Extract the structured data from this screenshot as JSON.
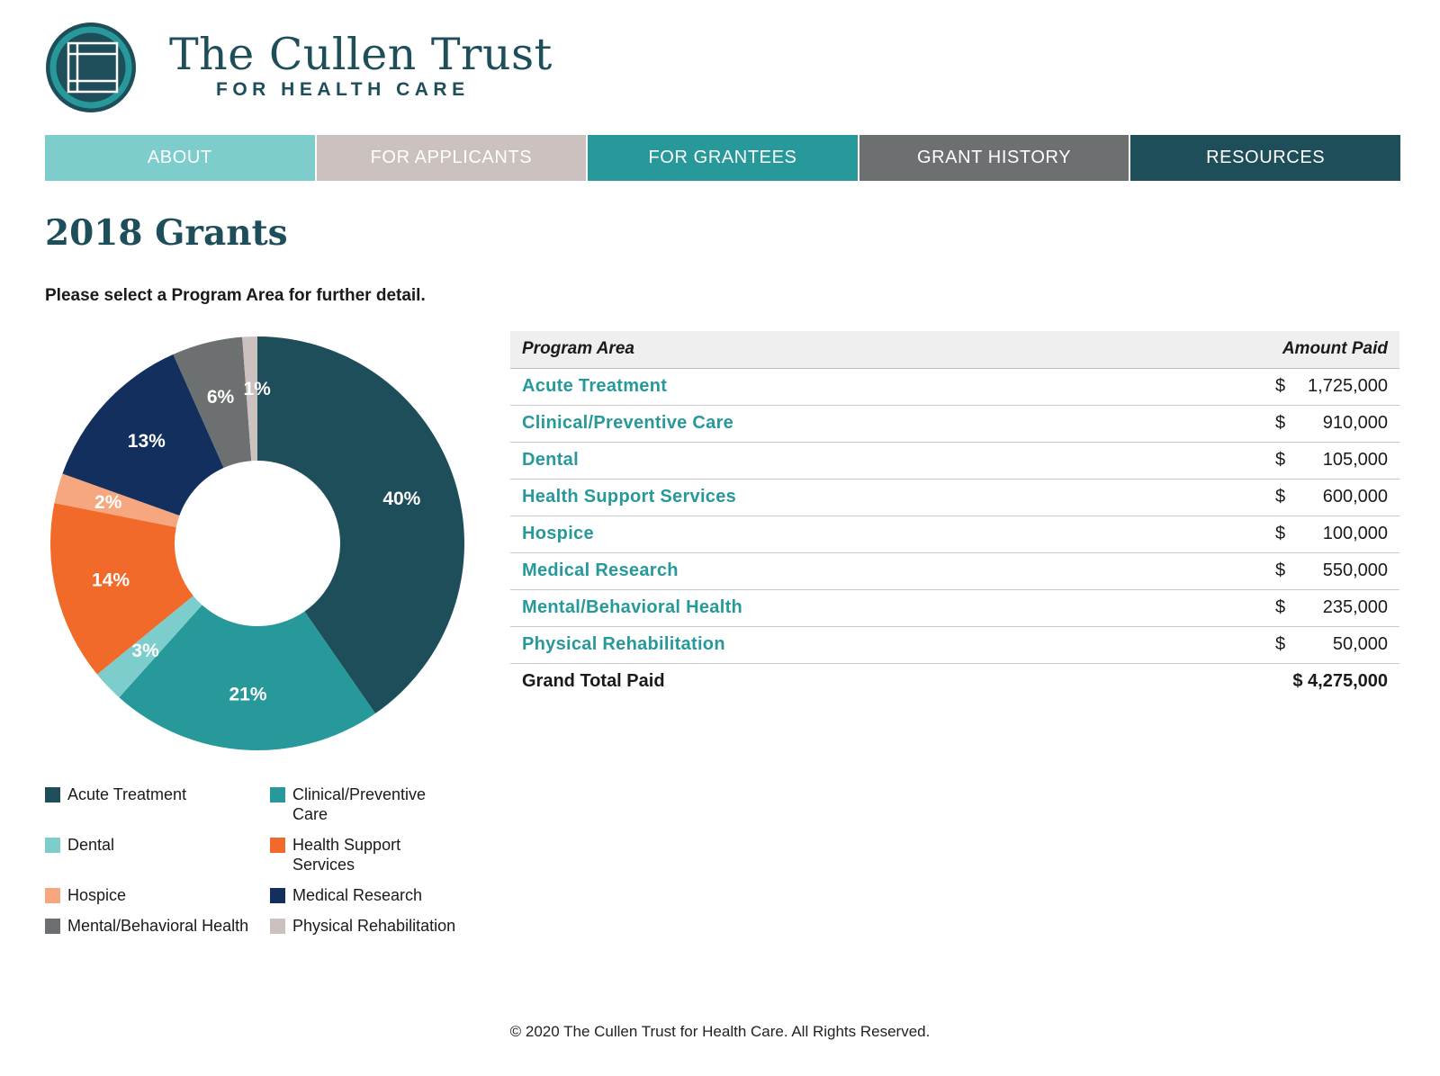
{
  "brand": {
    "title": "The Cullen Trust",
    "subtitle": "FOR HEALTH CARE"
  },
  "nav": [
    {
      "label": "ABOUT",
      "color": "#7ecdcd"
    },
    {
      "label": "FOR APPLICANTS",
      "color": "#cbc2bf"
    },
    {
      "label": "FOR GRANTEES",
      "color": "#27999b"
    },
    {
      "label": "GRANT HISTORY",
      "color": "#6d7070"
    },
    {
      "label": "RESOURCES",
      "color": "#1f4e5b"
    }
  ],
  "page": {
    "title": "2018 Grants",
    "instruction": "Please select a Program Area for further detail."
  },
  "chart_data": {
    "type": "pie",
    "donut": true,
    "categories": [
      "Acute Treatment",
      "Clinical/Preventive Care",
      "Dental",
      "Health Support Services",
      "Hospice",
      "Medical Research",
      "Mental/Behavioral Health",
      "Physical Rehabilitation"
    ],
    "values": [
      1725000,
      910000,
      105000,
      600000,
      100000,
      550000,
      235000,
      50000
    ],
    "labels": [
      "40%",
      "21%",
      "3%",
      "14%",
      "2%",
      "13%",
      "6%",
      "1%"
    ],
    "colors": [
      "#1f4e5b",
      "#27999b",
      "#7ecdcd",
      "#f26a2a",
      "#f7a77f",
      "#132f5e",
      "#6d7070",
      "#cbc2bf"
    ],
    "legend_position": "bottom"
  },
  "legend": [
    {
      "label": "Acute Treatment",
      "color": "#1f4e5b"
    },
    {
      "label": "Clinical/Preventive Care",
      "color": "#27999b"
    },
    {
      "label": "Dental",
      "color": "#7ecdcd"
    },
    {
      "label": "Health Support Services",
      "color": "#f26a2a"
    },
    {
      "label": "Hospice",
      "color": "#f7a77f"
    },
    {
      "label": "Medical Research",
      "color": "#132f5e"
    },
    {
      "label": "Mental/Behavioral Health",
      "color": "#6d7070"
    },
    {
      "label": "Physical Rehabilitation",
      "color": "#cbc2bf"
    }
  ],
  "table": {
    "headers": {
      "area": "Program Area",
      "amount": "Amount Paid"
    },
    "currency": "$",
    "rows": [
      {
        "area": "Acute Treatment",
        "amount": "1,725,000"
      },
      {
        "area": "Clinical/Preventive Care",
        "amount": "910,000"
      },
      {
        "area": "Dental",
        "amount": "105,000"
      },
      {
        "area": "Health Support Services",
        "amount": "600,000"
      },
      {
        "area": "Hospice",
        "amount": "100,000"
      },
      {
        "area": "Medical Research",
        "amount": "550,000"
      },
      {
        "area": "Mental/Behavioral Health",
        "amount": "235,000"
      },
      {
        "area": "Physical Rehabilitation",
        "amount": "50,000"
      }
    ],
    "total": {
      "label": "Grand Total Paid",
      "amount": "$ 4,275,000"
    }
  },
  "footer": {
    "text": "© 2020 The Cullen Trust for Health Care. All Rights Reserved."
  }
}
